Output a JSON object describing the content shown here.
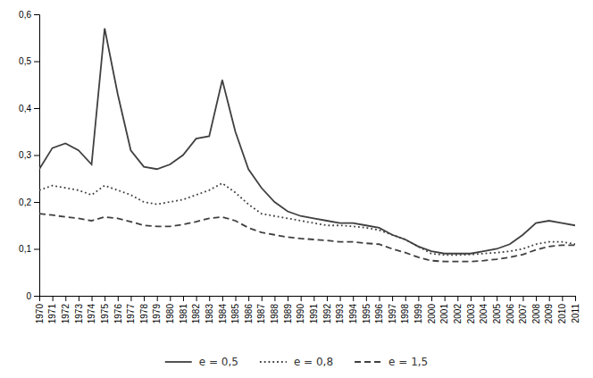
{
  "chart_data": {
    "type": "line",
    "x": [
      1970,
      1971,
      1972,
      1973,
      1974,
      1975,
      1976,
      1977,
      1978,
      1979,
      1980,
      1981,
      1982,
      1983,
      1984,
      1985,
      1986,
      1987,
      1988,
      1989,
      1990,
      1991,
      1992,
      1993,
      1994,
      1995,
      1996,
      1997,
      1998,
      1999,
      2000,
      2001,
      2002,
      2003,
      2004,
      2005,
      2006,
      2007,
      2008,
      2009,
      2010,
      2011
    ],
    "series": [
      {
        "name": "e = 0,5",
        "color": "#404040",
        "line_style": "solid",
        "values": [
          0.27,
          0.315,
          0.325,
          0.31,
          0.28,
          0.57,
          0.43,
          0.31,
          0.275,
          0.27,
          0.28,
          0.3,
          0.335,
          0.34,
          0.46,
          0.35,
          0.27,
          0.23,
          0.2,
          0.18,
          0.17,
          0.165,
          0.16,
          0.155,
          0.155,
          0.15,
          0.145,
          0.13,
          0.12,
          0.105,
          0.095,
          0.09,
          0.09,
          0.09,
          0.095,
          0.1,
          0.11,
          0.13,
          0.155,
          0.16,
          0.155,
          0.15
        ]
      },
      {
        "name": "e = 0,8",
        "color": "#404040",
        "line_style": "dotted",
        "values": [
          0.225,
          0.235,
          0.23,
          0.225,
          0.215,
          0.235,
          0.225,
          0.215,
          0.2,
          0.195,
          0.2,
          0.205,
          0.215,
          0.225,
          0.24,
          0.22,
          0.195,
          0.175,
          0.17,
          0.165,
          0.16,
          0.155,
          0.15,
          0.15,
          0.148,
          0.145,
          0.14,
          0.13,
          0.12,
          0.105,
          0.09,
          0.087,
          0.087,
          0.088,
          0.09,
          0.092,
          0.095,
          0.1,
          0.11,
          0.115,
          0.115,
          0.11
        ]
      },
      {
        "name": "e = 1,5",
        "color": "#404040",
        "line_style": "dashed",
        "values": [
          0.175,
          0.172,
          0.168,
          0.165,
          0.16,
          0.168,
          0.165,
          0.158,
          0.15,
          0.148,
          0.148,
          0.152,
          0.158,
          0.165,
          0.168,
          0.16,
          0.145,
          0.135,
          0.13,
          0.125,
          0.122,
          0.12,
          0.118,
          0.115,
          0.115,
          0.112,
          0.11,
          0.1,
          0.092,
          0.082,
          0.075,
          0.073,
          0.073,
          0.073,
          0.075,
          0.078,
          0.082,
          0.088,
          0.098,
          0.105,
          0.108,
          0.108
        ]
      }
    ],
    "xlim": [
      1970,
      2011
    ],
    "xticks": [
      1970,
      1971,
      1972,
      1973,
      1974,
      1975,
      1976,
      1977,
      1978,
      1979,
      1980,
      1981,
      1982,
      1983,
      1984,
      1985,
      1986,
      1987,
      1988,
      1989,
      1990,
      1991,
      1992,
      1993,
      1994,
      1995,
      1996,
      1997,
      1998,
      1999,
      2000,
      2001,
      2002,
      2003,
      2004,
      2005,
      2006,
      2007,
      2008,
      2009,
      2010,
      2011
    ],
    "ylim": [
      0,
      0.6
    ],
    "yticks": [
      0,
      {
        "value": 0.1,
        "label": "0,1"
      },
      {
        "value": 0.2,
        "label": "0,2"
      },
      {
        "value": 0.3,
        "label": "0,3"
      },
      {
        "value": 0.4,
        "label": "0,4"
      },
      {
        "value": 0.5,
        "label": "0,5"
      },
      {
        "value": 0.6,
        "label": "0,6"
      }
    ],
    "grid": false,
    "legend": "bottom"
  }
}
